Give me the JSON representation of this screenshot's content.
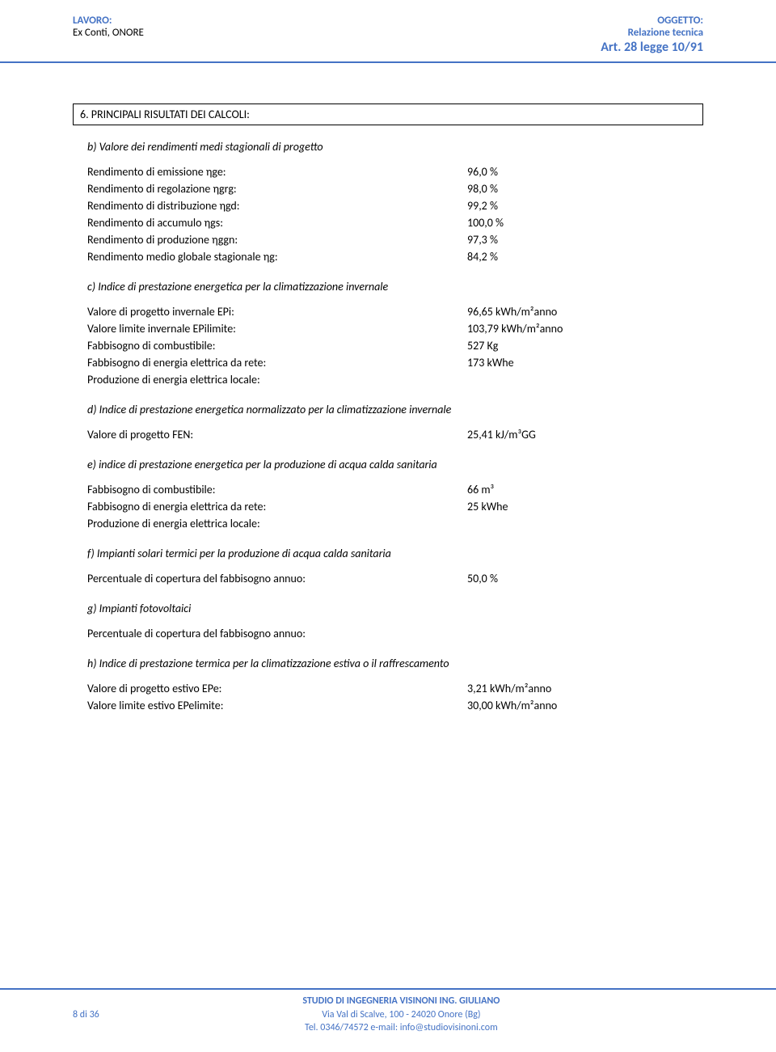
{
  "header": {
    "left_label": "LAVORO:",
    "left_value": "Ex Conti,  ONORE",
    "right_label": "OGGETTO:",
    "right_line1": "Relazione tecnica",
    "right_line2": "Art. 28 legge 10/91"
  },
  "section6": {
    "title": "6.  PRINCIPALI RISULTATI DEI CALCOLI:",
    "b_intro": "b) Valore dei rendimenti medi stagionali di progetto",
    "rows_b": [
      {
        "label": "Rendimento di emissione ηge:",
        "value": "96,0 %"
      },
      {
        "label": "Rendimento di regolazione ηgrg:",
        "value": "98,0 %"
      },
      {
        "label": "Rendimento di distribuzione ηgd:",
        "value": "99,2 %"
      },
      {
        "label": "Rendimento di accumulo ηgs:",
        "value": "100,0 %"
      },
      {
        "label": "Rendimento di produzione ηggn:",
        "value": "97,3 %"
      },
      {
        "label": "Rendimento medio globale stagionale ηg:",
        "value": "84,2 %"
      }
    ],
    "c_intro": "c) Indice di prestazione energetica per la climatizzazione invernale",
    "rows_c": [
      {
        "label": "Valore di progetto invernale       EPi:",
        "value": "96,65 kWh/m²anno"
      },
      {
        "label": "Valore limite invernale EPilimite:",
        "value": "103,79 kWh/m²anno"
      },
      {
        "label": "Fabbisogno di combustibile:",
        "value": "527 Kg"
      },
      {
        "label": "Fabbisogno di energia elettrica da rete:",
        "value": "173 kWhe"
      },
      {
        "label": "Produzione di energia elettrica locale:",
        "value": ""
      }
    ],
    "d_intro": "d) Indice di prestazione energetica normalizzato per la climatizzazione invernale",
    "rows_d": [
      {
        "label": "Valore di progetto FEN:",
        "value": "25,41 kJ/m³GG"
      }
    ],
    "e_intro": "e) indice di prestazione energetica per la produzione di acqua calda sanitaria",
    "rows_e": [
      {
        "label": "Fabbisogno di combustibile:",
        "value": "66 m³"
      },
      {
        "label": "Fabbisogno di energia elettrica da rete:",
        "value": "25 kWhe"
      },
      {
        "label": "Produzione di energia elettrica locale:",
        "value": ""
      }
    ],
    "f_intro": "f) Impianti solari termici per la produzione di acqua calda sanitaria",
    "rows_f": [
      {
        "label": "Percentuale di copertura del fabbisogno annuo:",
        "value": "50,0 %"
      }
    ],
    "g_intro": "g) Impianti fotovoltaici",
    "rows_g": [
      {
        "label": "Percentuale di copertura del fabbisogno annuo:",
        "value": ""
      }
    ],
    "h_intro": "h) Indice di prestazione termica per la climatizzazione estiva o il raffrescamento",
    "rows_h": [
      {
        "label": "Valore di progetto estivo EPe:",
        "value": "3,21 kWh/m²anno"
      },
      {
        "label": "Valore limite estivo EPelimite:",
        "value": "30,00 kWh/m²anno"
      }
    ]
  },
  "footer": {
    "page": "8 di 36",
    "studio": "STUDIO  DI  INGEGNERIA  VISINONI ING. GIULIANO",
    "addr": "Via Val di Scalve, 100  -  24020  Onore (Bg)",
    "contact": "Tel. 0346/74572   e-mail: info@studiovisinoni.com"
  },
  "style": {
    "accent_color": "#4472c4",
    "text_color": "#000000",
    "background": "#ffffff",
    "body_fontsize": 14,
    "header_fontsize": 13,
    "footer_fontsize": 12
  }
}
